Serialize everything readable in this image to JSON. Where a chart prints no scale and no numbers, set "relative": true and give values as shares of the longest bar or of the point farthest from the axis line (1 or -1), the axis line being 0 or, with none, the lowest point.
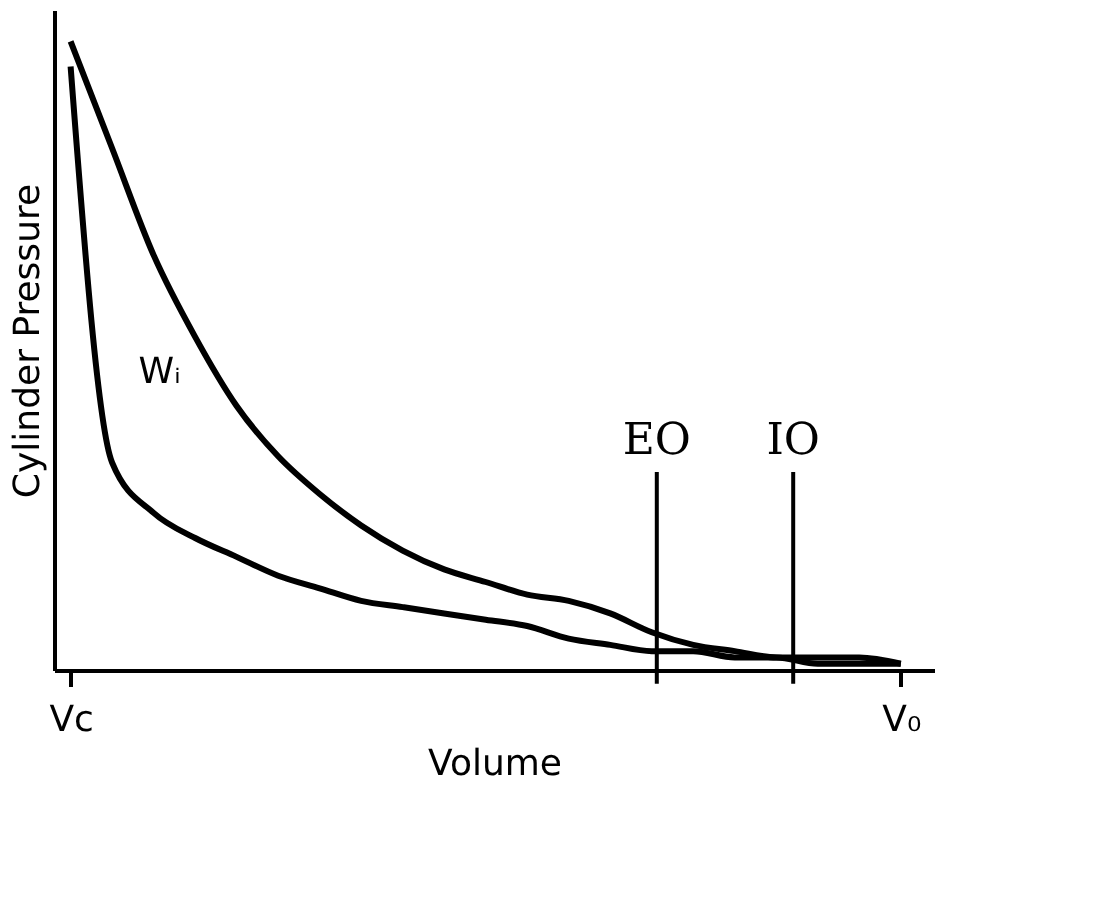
{
  "chart_data": {
    "type": "line",
    "relative": true,
    "xlabel": "Volume",
    "ylabel": "Cylinder Pressure",
    "categories": [
      "Vc",
      null,
      null,
      null,
      null,
      null,
      null,
      null,
      null,
      null,
      null,
      null,
      null,
      null,
      null,
      null,
      null,
      null,
      null,
      null,
      "V₀"
    ],
    "series": [
      {
        "color": "#000000",
        "values": [
          1.0,
          0.83,
          0.66,
          0.53,
          0.42,
          0.34,
          0.28,
          0.23,
          0.19,
          0.16,
          0.14,
          0.12,
          0.11,
          0.09,
          0.06,
          0.04,
          0.03,
          0.02,
          0.02,
          0.02,
          0.01
        ]
      },
      {
        "color": "#000000",
        "values": [
          0.96,
          0.33,
          0.25,
          0.21,
          0.18,
          0.15,
          0.13,
          0.11,
          0.1,
          0.09,
          0.08,
          0.07,
          0.05,
          0.04,
          0.03,
          0.03,
          0.02,
          0.02,
          0.01,
          0.01,
          0.01
        ]
      }
    ],
    "annotations": [
      "Wᵢ",
      "EO",
      "IO"
    ],
    "grid": false,
    "marker": "none",
    "line_style": "solid"
  }
}
